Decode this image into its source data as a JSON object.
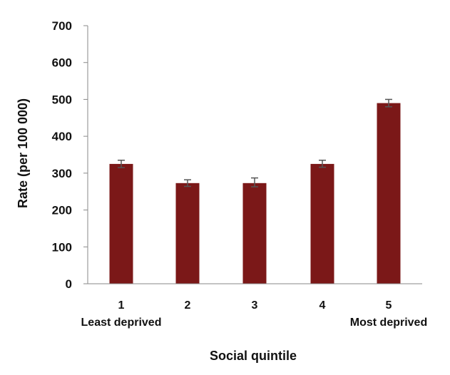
{
  "chart_data": {
    "type": "bar",
    "categories": [
      "1",
      "2",
      "3",
      "4",
      "5"
    ],
    "category_sublabels": [
      "Least deprived",
      "",
      "",
      "",
      "Most deprived"
    ],
    "values": [
      325,
      273,
      273,
      325,
      490
    ],
    "error_low": [
      315,
      264,
      263,
      316,
      480
    ],
    "error_high": [
      335,
      282,
      287,
      335,
      500
    ],
    "ylim": [
      0,
      700
    ],
    "yticks": [
      "0",
      "100",
      "200",
      "300",
      "400",
      "500",
      "600",
      "700"
    ],
    "xlabel": "Social quintile",
    "ylabel": "Rate (per 100 000)",
    "bar_color": "#7b1818",
    "grid": false
  }
}
